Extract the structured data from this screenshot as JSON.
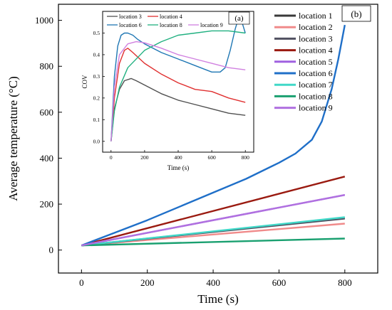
{
  "chart_data": [
    {
      "type": "line",
      "panel_label": "(b)",
      "xlabel": "Time (s)",
      "ylabel": "Average temperature (°C)",
      "xlim": [
        -70,
        900
      ],
      "ylim": [
        -100,
        1070
      ],
      "x_ticks": [
        0,
        200,
        400,
        600,
        800
      ],
      "y_ticks": [
        0,
        200,
        400,
        600,
        800,
        1000
      ],
      "grid": false,
      "legend_position": "top-right",
      "series": [
        {
          "name": "location 1",
          "color": "#3a3a3a",
          "x": [
            0,
            800
          ],
          "y": [
            20,
            140
          ]
        },
        {
          "name": "location 2",
          "color": "#f08a8a",
          "x": [
            0,
            800
          ],
          "y": [
            20,
            115
          ]
        },
        {
          "name": "location 3",
          "color": "#505060",
          "x": [
            0,
            800
          ],
          "y": [
            20,
            137
          ]
        },
        {
          "name": "location 4",
          "color": "#9a1a10",
          "x": [
            0,
            800
          ],
          "y": [
            20,
            320
          ]
        },
        {
          "name": "location 5",
          "color": "#a060e0",
          "x": [
            0,
            800
          ],
          "y": [
            20,
            240
          ]
        },
        {
          "name": "location 6",
          "color": "#1f6fc8",
          "x": [
            0,
            100,
            200,
            300,
            400,
            500,
            600,
            650,
            700,
            730,
            760,
            780,
            800
          ],
          "y": [
            20,
            75,
            130,
            190,
            250,
            310,
            380,
            420,
            480,
            560,
            700,
            830,
            980
          ]
        },
        {
          "name": "location 7",
          "color": "#40d8c8",
          "x": [
            0,
            800
          ],
          "y": [
            20,
            143
          ]
        },
        {
          "name": "location 8",
          "color": "#1aa070",
          "x": [
            0,
            800
          ],
          "y": [
            20,
            50
          ]
        },
        {
          "name": "location 9",
          "color": "#b070e0",
          "x": [
            0,
            800
          ],
          "y": [
            20,
            240
          ]
        }
      ]
    },
    {
      "type": "line",
      "panel_label": "(a)",
      "xlabel": "Time (s)",
      "ylabel": "COV",
      "xlim": [
        -50,
        850
      ],
      "ylim": [
        -0.05,
        0.6
      ],
      "x_ticks": [
        0,
        200,
        400,
        600,
        800
      ],
      "y_ticks": [
        0.0,
        0.1,
        0.2,
        0.3,
        0.4,
        0.5
      ],
      "grid": false,
      "legend_position": "top",
      "series": [
        {
          "name": "location 3",
          "color": "#505050",
          "x": [
            0,
            20,
            50,
            80,
            120,
            150,
            200,
            300,
            400,
            500,
            600,
            700,
            800
          ],
          "y": [
            0.0,
            0.15,
            0.24,
            0.28,
            0.29,
            0.28,
            0.26,
            0.22,
            0.19,
            0.17,
            0.15,
            0.13,
            0.12
          ]
        },
        {
          "name": "location 4",
          "color": "#e03030",
          "x": [
            0,
            20,
            50,
            80,
            100,
            130,
            200,
            300,
            400,
            500,
            600,
            700,
            800
          ],
          "y": [
            0.0,
            0.2,
            0.36,
            0.42,
            0.43,
            0.41,
            0.36,
            0.31,
            0.27,
            0.24,
            0.23,
            0.2,
            0.18
          ]
        },
        {
          "name": "location 6",
          "color": "#1f77b4",
          "x": [
            0,
            20,
            40,
            60,
            80,
            100,
            130,
            160,
            200,
            300,
            400,
            500,
            600,
            650,
            680,
            710,
            740,
            760,
            780,
            800
          ],
          "y": [
            0.0,
            0.3,
            0.44,
            0.49,
            0.5,
            0.5,
            0.49,
            0.47,
            0.45,
            0.41,
            0.38,
            0.35,
            0.32,
            0.32,
            0.34,
            0.42,
            0.52,
            0.57,
            0.55,
            0.5
          ]
        },
        {
          "name": "location 8",
          "color": "#20b080",
          "x": [
            0,
            20,
            50,
            100,
            200,
            300,
            400,
            500,
            600,
            700,
            800
          ],
          "y": [
            0.0,
            0.14,
            0.25,
            0.34,
            0.42,
            0.46,
            0.49,
            0.5,
            0.51,
            0.51,
            0.5
          ]
        },
        {
          "name": "location 9",
          "color": "#d080e0",
          "x": [
            0,
            20,
            50,
            100,
            150,
            200,
            300,
            400,
            500,
            600,
            700,
            800
          ],
          "y": [
            0.0,
            0.25,
            0.4,
            0.45,
            0.46,
            0.455,
            0.43,
            0.4,
            0.38,
            0.36,
            0.34,
            0.33
          ]
        }
      ]
    }
  ]
}
